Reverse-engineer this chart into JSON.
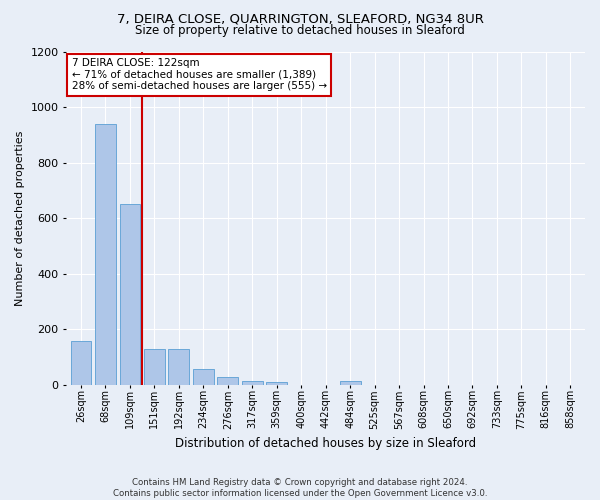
{
  "title_line1": "7, DEIRA CLOSE, QUARRINGTON, SLEAFORD, NG34 8UR",
  "title_line2": "Size of property relative to detached houses in Sleaford",
  "xlabel": "Distribution of detached houses by size in Sleaford",
  "ylabel": "Number of detached properties",
  "footer_line1": "Contains HM Land Registry data © Crown copyright and database right 2024.",
  "footer_line2": "Contains public sector information licensed under the Open Government Licence v3.0.",
  "bar_labels": [
    "26sqm",
    "68sqm",
    "109sqm",
    "151sqm",
    "192sqm",
    "234sqm",
    "276sqm",
    "317sqm",
    "359sqm",
    "400sqm",
    "442sqm",
    "484sqm",
    "525sqm",
    "567sqm",
    "608sqm",
    "650sqm",
    "692sqm",
    "733sqm",
    "775sqm",
    "816sqm",
    "858sqm"
  ],
  "bar_values": [
    160,
    940,
    650,
    130,
    130,
    58,
    30,
    15,
    10,
    0,
    0,
    15,
    0,
    0,
    0,
    0,
    0,
    0,
    0,
    0,
    0
  ],
  "bar_color": "#aec6e8",
  "bar_edge_color": "#5a9fd4",
  "vline_color": "#cc0000",
  "vline_x_index": 2.5,
  "ylim": [
    0,
    1200
  ],
  "yticks": [
    0,
    200,
    400,
    600,
    800,
    1000,
    1200
  ],
  "annotation_text": "7 DEIRA CLOSE: 122sqm\n← 71% of detached houses are smaller (1,389)\n28% of semi-detached houses are larger (555) →",
  "annotation_box_color": "#ffffff",
  "annotation_box_edge": "#cc0000",
  "background_color": "#e8eef7"
}
